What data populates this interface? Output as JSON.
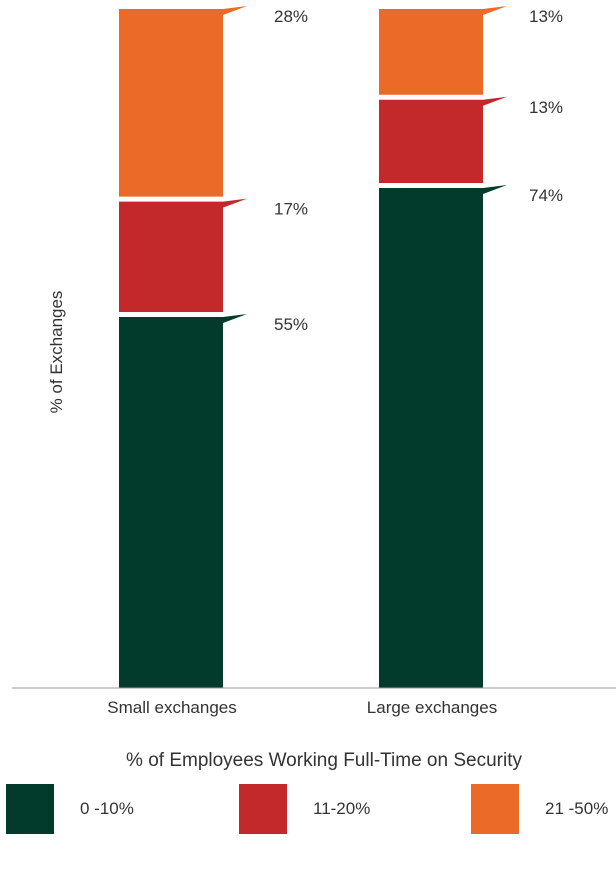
{
  "chart_data": {
    "type": "bar",
    "stacked": true,
    "categories": [
      "Small exchanges",
      "Large exchanges"
    ],
    "series": [
      {
        "name": "0 -10%",
        "color": "#023b2b",
        "values": [
          55,
          74
        ],
        "labels": [
          "55%",
          "74%"
        ]
      },
      {
        "name": "11-20%",
        "color": "#c3282b",
        "values": [
          17,
          13
        ],
        "labels": [
          "17%",
          "13%"
        ]
      },
      {
        "name": "21 -50%",
        "color": "#eb6a28",
        "values": [
          28,
          13
        ],
        "labels": [
          "28%",
          "13%"
        ]
      }
    ],
    "xlabel": "% of Employees Working Full-Time on Security",
    "ylabel": "% of Exchanges",
    "ylim": [
      0,
      100
    ],
    "grid": false,
    "legend_position": "bottom"
  }
}
